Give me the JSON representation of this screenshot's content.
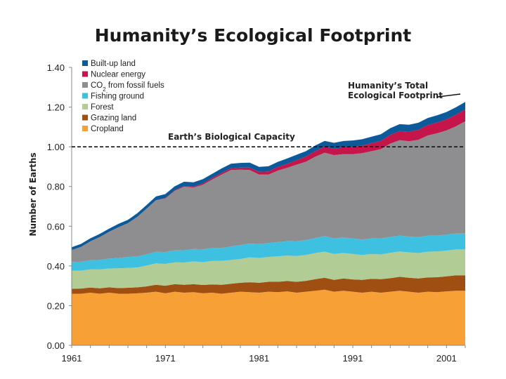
{
  "chart_data": {
    "type": "area",
    "title": "Humanity’s Ecological Footprint",
    "xlabel": "",
    "ylabel": "Number of Earths",
    "xlim": [
      1961,
      2003
    ],
    "ylim": [
      0,
      1.4
    ],
    "x_ticks": [
      "1961",
      "1971",
      "1981",
      "1991",
      "2001"
    ],
    "y_ticks": [
      "0.00",
      "0.20",
      "0.40",
      "0.60",
      "0.80",
      "1.00",
      "1.20",
      "1.40"
    ],
    "x": [
      1961,
      1962,
      1963,
      1964,
      1965,
      1966,
      1967,
      1968,
      1969,
      1970,
      1971,
      1972,
      1973,
      1974,
      1975,
      1976,
      1977,
      1978,
      1979,
      1980,
      1981,
      1982,
      1983,
      1984,
      1985,
      1986,
      1987,
      1988,
      1989,
      1990,
      1991,
      1992,
      1993,
      1994,
      1995,
      1996,
      1997,
      1998,
      1999,
      2000,
      2001,
      2002,
      2003
    ],
    "legend_entries": [
      "Built-up land",
      "Nuclear energy",
      "CO2 from fossil fuels",
      "Fishing ground",
      "Forest",
      "Grazing land",
      "Cropland"
    ],
    "legend_sub_text": "2",
    "series": [
      {
        "name": "Cropland",
        "color": "#f7a035",
        "values": [
          0.26,
          0.26,
          0.265,
          0.26,
          0.265,
          0.26,
          0.26,
          0.262,
          0.265,
          0.27,
          0.262,
          0.27,
          0.265,
          0.268,
          0.262,
          0.265,
          0.26,
          0.265,
          0.27,
          0.268,
          0.265,
          0.27,
          0.268,
          0.272,
          0.265,
          0.27,
          0.275,
          0.28,
          0.27,
          0.275,
          0.27,
          0.265,
          0.27,
          0.265,
          0.27,
          0.275,
          0.27,
          0.265,
          0.27,
          0.268,
          0.272,
          0.275,
          0.275
        ]
      },
      {
        "name": "Grazing land",
        "color": "#a04f12",
        "values": [
          0.025,
          0.026,
          0.026,
          0.027,
          0.027,
          0.028,
          0.03,
          0.03,
          0.032,
          0.035,
          0.038,
          0.038,
          0.04,
          0.04,
          0.042,
          0.042,
          0.045,
          0.045,
          0.045,
          0.05,
          0.05,
          0.05,
          0.052,
          0.052,
          0.055,
          0.055,
          0.058,
          0.06,
          0.06,
          0.062,
          0.062,
          0.065,
          0.065,
          0.068,
          0.068,
          0.07,
          0.07,
          0.072,
          0.072,
          0.075,
          0.075,
          0.078,
          0.078
        ]
      },
      {
        "name": "Forest",
        "color": "#b2cc95",
        "values": [
          0.09,
          0.09,
          0.092,
          0.095,
          0.095,
          0.1,
          0.1,
          0.1,
          0.105,
          0.108,
          0.11,
          0.11,
          0.112,
          0.115,
          0.115,
          0.118,
          0.12,
          0.12,
          0.12,
          0.125,
          0.125,
          0.125,
          0.128,
          0.128,
          0.13,
          0.13,
          0.132,
          0.132,
          0.13,
          0.128,
          0.128,
          0.125,
          0.125,
          0.125,
          0.128,
          0.128,
          0.128,
          0.128,
          0.13,
          0.13,
          0.13,
          0.13,
          0.13
        ]
      },
      {
        "name": "Fishing ground",
        "color": "#3ec0e0",
        "values": [
          0.045,
          0.045,
          0.046,
          0.048,
          0.05,
          0.052,
          0.055,
          0.055,
          0.057,
          0.058,
          0.06,
          0.06,
          0.062,
          0.062,
          0.065,
          0.065,
          0.065,
          0.068,
          0.07,
          0.07,
          0.07,
          0.07,
          0.072,
          0.072,
          0.075,
          0.075,
          0.075,
          0.078,
          0.078,
          0.078,
          0.078,
          0.078,
          0.078,
          0.08,
          0.08,
          0.08,
          0.08,
          0.08,
          0.08,
          0.08,
          0.08,
          0.08,
          0.08
        ]
      },
      {
        "name": "CO2 from fossil fuels",
        "color": "#8e8e91",
        "values": [
          0.06,
          0.075,
          0.095,
          0.115,
          0.135,
          0.155,
          0.17,
          0.2,
          0.23,
          0.26,
          0.27,
          0.3,
          0.32,
          0.31,
          0.325,
          0.345,
          0.37,
          0.385,
          0.38,
          0.37,
          0.35,
          0.345,
          0.36,
          0.37,
          0.385,
          0.395,
          0.41,
          0.42,
          0.42,
          0.42,
          0.425,
          0.435,
          0.44,
          0.45,
          0.47,
          0.48,
          0.48,
          0.49,
          0.505,
          0.515,
          0.525,
          0.54,
          0.565
        ]
      },
      {
        "name": "Nuclear energy",
        "color": "#c6154a",
        "values": [
          0.0,
          0.0,
          0.0,
          0.0,
          0.0,
          0.0,
          0.0,
          0.0,
          0.0,
          0.0,
          0.002,
          0.003,
          0.004,
          0.005,
          0.006,
          0.007,
          0.008,
          0.009,
          0.01,
          0.012,
          0.014,
          0.016,
          0.018,
          0.02,
          0.022,
          0.025,
          0.028,
          0.03,
          0.032,
          0.035,
          0.037,
          0.038,
          0.04,
          0.042,
          0.044,
          0.046,
          0.048,
          0.05,
          0.052,
          0.054,
          0.056,
          0.058,
          0.06
        ]
      },
      {
        "name": "Built-up land",
        "color": "#0c5a9a",
        "values": [
          0.014,
          0.015,
          0.015,
          0.016,
          0.016,
          0.017,
          0.017,
          0.018,
          0.018,
          0.019,
          0.02,
          0.02,
          0.021,
          0.021,
          0.022,
          0.022,
          0.023,
          0.023,
          0.024,
          0.025,
          0.025,
          0.026,
          0.026,
          0.027,
          0.028,
          0.028,
          0.029,
          0.03,
          0.03,
          0.031,
          0.032,
          0.032,
          0.033,
          0.033,
          0.034,
          0.035,
          0.035,
          0.036,
          0.036,
          0.037,
          0.037,
          0.038,
          0.038
        ]
      }
    ],
    "reference_line": {
      "value": 1.0,
      "label": "Earth’s Biological Capacity",
      "style": "dashed"
    },
    "annotations": [
      "Humanity’s Total",
      "Ecological Footprint"
    ],
    "grid": false,
    "legend_position": "top-left"
  }
}
